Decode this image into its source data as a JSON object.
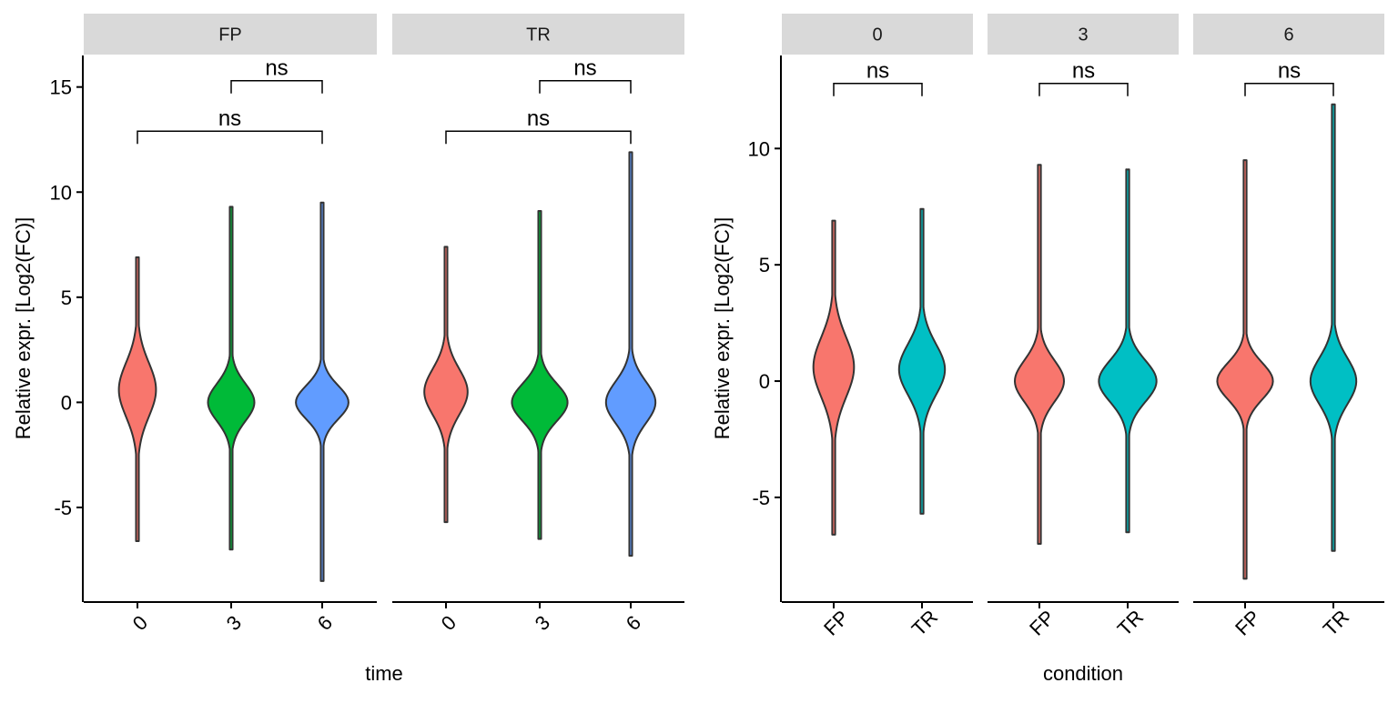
{
  "colors": {
    "time_0": "#F8766D",
    "time_3": "#00BA38",
    "time_6": "#619CFF",
    "condition_FP": "#F8766D",
    "condition_TR": "#00BFC4",
    "strip": "#D9D9D9",
    "outline": "#333333"
  },
  "chart_data": [
    {
      "type": "violin",
      "facet_var": "condition",
      "facets": [
        "FP",
        "TR"
      ],
      "x_var": "time",
      "categories": [
        "0",
        "3",
        "6"
      ],
      "xlabel": "time",
      "ylabel": "Relative expr. [Log2(FC)]",
      "ylim": [
        -9.5,
        16.5
      ],
      "yticks": [
        -5,
        0,
        5,
        10,
        15
      ],
      "ytick_labels": [
        "-5",
        "0",
        "5",
        "10",
        "15"
      ],
      "violins": [
        {
          "facet": "FP",
          "x": "0",
          "min": -6.6,
          "max": 6.9,
          "mode": 0.6,
          "width": 0.6,
          "sd": 1.3,
          "color_key": "time_0"
        },
        {
          "facet": "FP",
          "x": "3",
          "min": -7.0,
          "max": 9.3,
          "mode": 0.0,
          "width": 0.75,
          "sd": 0.9,
          "color_key": "time_3"
        },
        {
          "facet": "FP",
          "x": "6",
          "min": -8.5,
          "max": 9.5,
          "mode": 0.0,
          "width": 0.85,
          "sd": 0.8,
          "color_key": "time_6"
        },
        {
          "facet": "TR",
          "x": "0",
          "min": -5.7,
          "max": 7.4,
          "mode": 0.5,
          "width": 0.7,
          "sd": 1.1,
          "color_key": "time_0"
        },
        {
          "facet": "TR",
          "x": "3",
          "min": -6.5,
          "max": 9.1,
          "mode": 0.0,
          "width": 0.9,
          "sd": 0.9,
          "color_key": "time_3"
        },
        {
          "facet": "TR",
          "x": "6",
          "min": -7.3,
          "max": 11.9,
          "mode": 0.0,
          "width": 0.8,
          "sd": 1.0,
          "color_key": "time_6"
        }
      ],
      "comparisons": [
        {
          "facet": "FP",
          "from": "3",
          "to": "6",
          "y": 15.3,
          "label": "ns"
        },
        {
          "facet": "FP",
          "from": "0",
          "to": "6",
          "y": 12.9,
          "label": "ns"
        },
        {
          "facet": "TR",
          "from": "3",
          "to": "6",
          "y": 15.3,
          "label": "ns"
        },
        {
          "facet": "TR",
          "from": "0",
          "to": "6",
          "y": 12.9,
          "label": "ns"
        }
      ]
    },
    {
      "type": "violin",
      "facet_var": "time",
      "facets": [
        "0",
        "3",
        "6"
      ],
      "x_var": "condition",
      "categories": [
        "FP",
        "TR"
      ],
      "xlabel": "condition",
      "ylabel": "Relative expr. [Log2(FC)]",
      "ylim": [
        -9.5,
        14.0
      ],
      "yticks": [
        -5,
        0,
        5,
        10
      ],
      "ytick_labels": [
        "-5",
        "0",
        "5",
        "10"
      ],
      "violins": [
        {
          "facet": "0",
          "x": "FP",
          "min": -6.6,
          "max": 6.9,
          "mode": 0.6,
          "width": 0.62,
          "sd": 1.3,
          "color_key": "condition_FP"
        },
        {
          "facet": "0",
          "x": "TR",
          "min": -5.7,
          "max": 7.4,
          "mode": 0.5,
          "width": 0.7,
          "sd": 1.1,
          "color_key": "condition_TR"
        },
        {
          "facet": "3",
          "x": "FP",
          "min": -7.0,
          "max": 9.3,
          "mode": 0.0,
          "width": 0.75,
          "sd": 0.9,
          "color_key": "condition_FP"
        },
        {
          "facet": "3",
          "x": "TR",
          "min": -6.5,
          "max": 9.1,
          "mode": 0.0,
          "width": 0.88,
          "sd": 0.9,
          "color_key": "condition_TR"
        },
        {
          "facet": "6",
          "x": "FP",
          "min": -8.5,
          "max": 9.5,
          "mode": 0.0,
          "width": 0.85,
          "sd": 0.8,
          "color_key": "condition_FP"
        },
        {
          "facet": "6",
          "x": "TR",
          "min": -7.3,
          "max": 11.9,
          "mode": 0.0,
          "width": 0.7,
          "sd": 1.0,
          "color_key": "condition_TR"
        }
      ],
      "comparisons": [
        {
          "facet": "0",
          "from": "FP",
          "to": "TR",
          "y": 12.8,
          "label": "ns"
        },
        {
          "facet": "3",
          "from": "FP",
          "to": "TR",
          "y": 12.8,
          "label": "ns"
        },
        {
          "facet": "6",
          "from": "FP",
          "to": "TR",
          "y": 12.8,
          "label": "ns"
        }
      ]
    }
  ]
}
